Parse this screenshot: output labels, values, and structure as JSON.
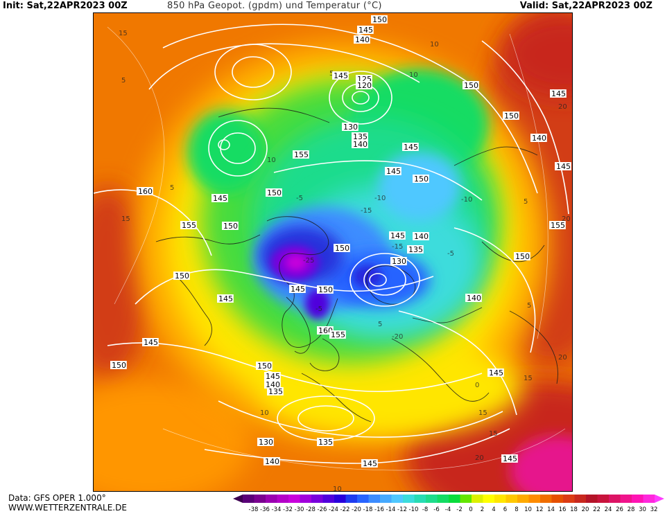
{
  "header": {
    "init": "Init: Sat,22APR2023 00Z",
    "title": "850 hPa Geopot. (gpdm) und Temperatur (°C)",
    "valid": "Valid: Sat,22APR2023 00Z"
  },
  "footer": {
    "data_line": "Data: GFS OPER 1.000°",
    "site": "WWW.WETTERZENTRALE.DE"
  },
  "colorbar": {
    "ticks": [
      "-38",
      "-36",
      "-34",
      "-32",
      "-30",
      "-28",
      "-26",
      "-24",
      "-22",
      "-20",
      "-18",
      "-16",
      "-14",
      "-12",
      "-10",
      "-8",
      "-6",
      "-4",
      "-2",
      "0",
      "2",
      "4",
      "6",
      "8",
      "10",
      "12",
      "14",
      "16",
      "18",
      "20",
      "22",
      "24",
      "26",
      "28",
      "30",
      "32"
    ],
    "colors": [
      "#5a0078",
      "#7a0090",
      "#9a00b0",
      "#b400c8",
      "#c800dc",
      "#a000dc",
      "#7800dc",
      "#5000dc",
      "#2800dc",
      "#1e3cf0",
      "#2864ff",
      "#3c8cff",
      "#46aaff",
      "#50c8ff",
      "#3cdcdc",
      "#28dcb4",
      "#1edc8c",
      "#14dc64",
      "#0adc3c",
      "#64e600",
      "#dcf000",
      "#ffff00",
      "#ffe600",
      "#ffc800",
      "#ffaa00",
      "#ff8c00",
      "#f06e00",
      "#e65000",
      "#dc3c14",
      "#c8281e",
      "#b41428",
      "#c8143c",
      "#dc1464",
      "#f0148c",
      "#ff14b4",
      "#ff28dc"
    ],
    "arrow_right_color": "#ff3cff",
    "arrow_left_color": "#3c0050"
  },
  "map_labels": {
    "geopotential": [
      {
        "text": "150"
      },
      {
        "text": "145"
      },
      {
        "text": "140"
      },
      {
        "text": "145"
      },
      {
        "text": "125"
      },
      {
        "text": "120"
      },
      {
        "text": "150"
      },
      {
        "text": "145"
      },
      {
        "text": "150"
      },
      {
        "text": "140"
      },
      {
        "text": "145"
      },
      {
        "text": "130"
      },
      {
        "text": "135"
      },
      {
        "text": "140"
      },
      {
        "text": "145"
      },
      {
        "text": "155"
      },
      {
        "text": "145"
      },
      {
        "text": "150"
      },
      {
        "text": "160"
      },
      {
        "text": "145"
      },
      {
        "text": "150"
      },
      {
        "text": "155"
      },
      {
        "text": "150"
      },
      {
        "text": "145"
      },
      {
        "text": "140"
      },
      {
        "text": "150"
      },
      {
        "text": "155"
      },
      {
        "text": "150"
      },
      {
        "text": "135"
      },
      {
        "text": "130"
      },
      {
        "text": "150"
      },
      {
        "text": "145"
      },
      {
        "text": "145"
      },
      {
        "text": "150"
      },
      {
        "text": "140"
      },
      {
        "text": "160"
      },
      {
        "text": "155"
      },
      {
        "text": "145"
      },
      {
        "text": "150"
      },
      {
        "text": "150"
      },
      {
        "text": "145"
      },
      {
        "text": "140"
      },
      {
        "text": "135"
      },
      {
        "text": "145"
      },
      {
        "text": "130"
      },
      {
        "text": "135"
      },
      {
        "text": "140"
      },
      {
        "text": "145"
      },
      {
        "text": "145"
      }
    ],
    "temperature": [
      {
        "text": "15"
      },
      {
        "text": "5"
      },
      {
        "text": "10"
      },
      {
        "text": "5"
      },
      {
        "text": "15"
      },
      {
        "text": "20"
      },
      {
        "text": "10"
      },
      {
        "text": "5"
      },
      {
        "text": "5"
      },
      {
        "text": "15"
      },
      {
        "text": "5"
      },
      {
        "text": "-10"
      },
      {
        "text": "-5"
      },
      {
        "text": "-15"
      },
      {
        "text": "-20"
      },
      {
        "text": "-10"
      },
      {
        "text": "-15"
      },
      {
        "text": "-5"
      },
      {
        "text": "-25"
      },
      {
        "text": "0"
      },
      {
        "text": "10"
      },
      {
        "text": "20"
      },
      {
        "text": "15"
      },
      {
        "text": "20"
      },
      {
        "text": "10"
      },
      {
        "text": "15"
      },
      {
        "text": "-5"
      },
      {
        "text": "5"
      },
      {
        "text": "10"
      },
      {
        "text": "15"
      },
      {
        "text": "20"
      }
    ]
  }
}
